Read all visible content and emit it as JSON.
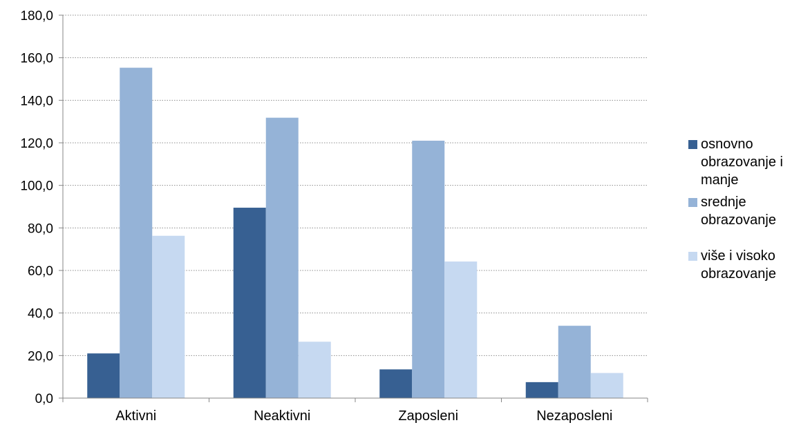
{
  "chart_data": {
    "type": "bar",
    "categories": [
      "Aktivni",
      "Neaktivni",
      "Zaposleni",
      "Nezaposleni"
    ],
    "series": [
      {
        "name": "osnovno obrazovanje i manje",
        "values": [
          21.0,
          89.5,
          13.5,
          7.5
        ],
        "color": "#376092"
      },
      {
        "name": "srednje obrazovanje",
        "values": [
          155.3,
          131.8,
          121.0,
          34.0
        ],
        "color": "#95b3d7"
      },
      {
        "name": "više i visoko obrazovanje",
        "values": [
          76.3,
          26.5,
          64.2,
          11.8
        ],
        "color": "#c6d9f1"
      }
    ],
    "yticks": [
      "0,0",
      "20,0",
      "40,0",
      "60,0",
      "80,0",
      "100,0",
      "120,0",
      "140,0",
      "160,0",
      "180,0"
    ],
    "ylim": [
      0,
      180
    ],
    "ystep": 20,
    "grid": "horizontal-dotted",
    "legend_position": "right",
    "title": "",
    "xlabel": "",
    "ylabel": ""
  }
}
